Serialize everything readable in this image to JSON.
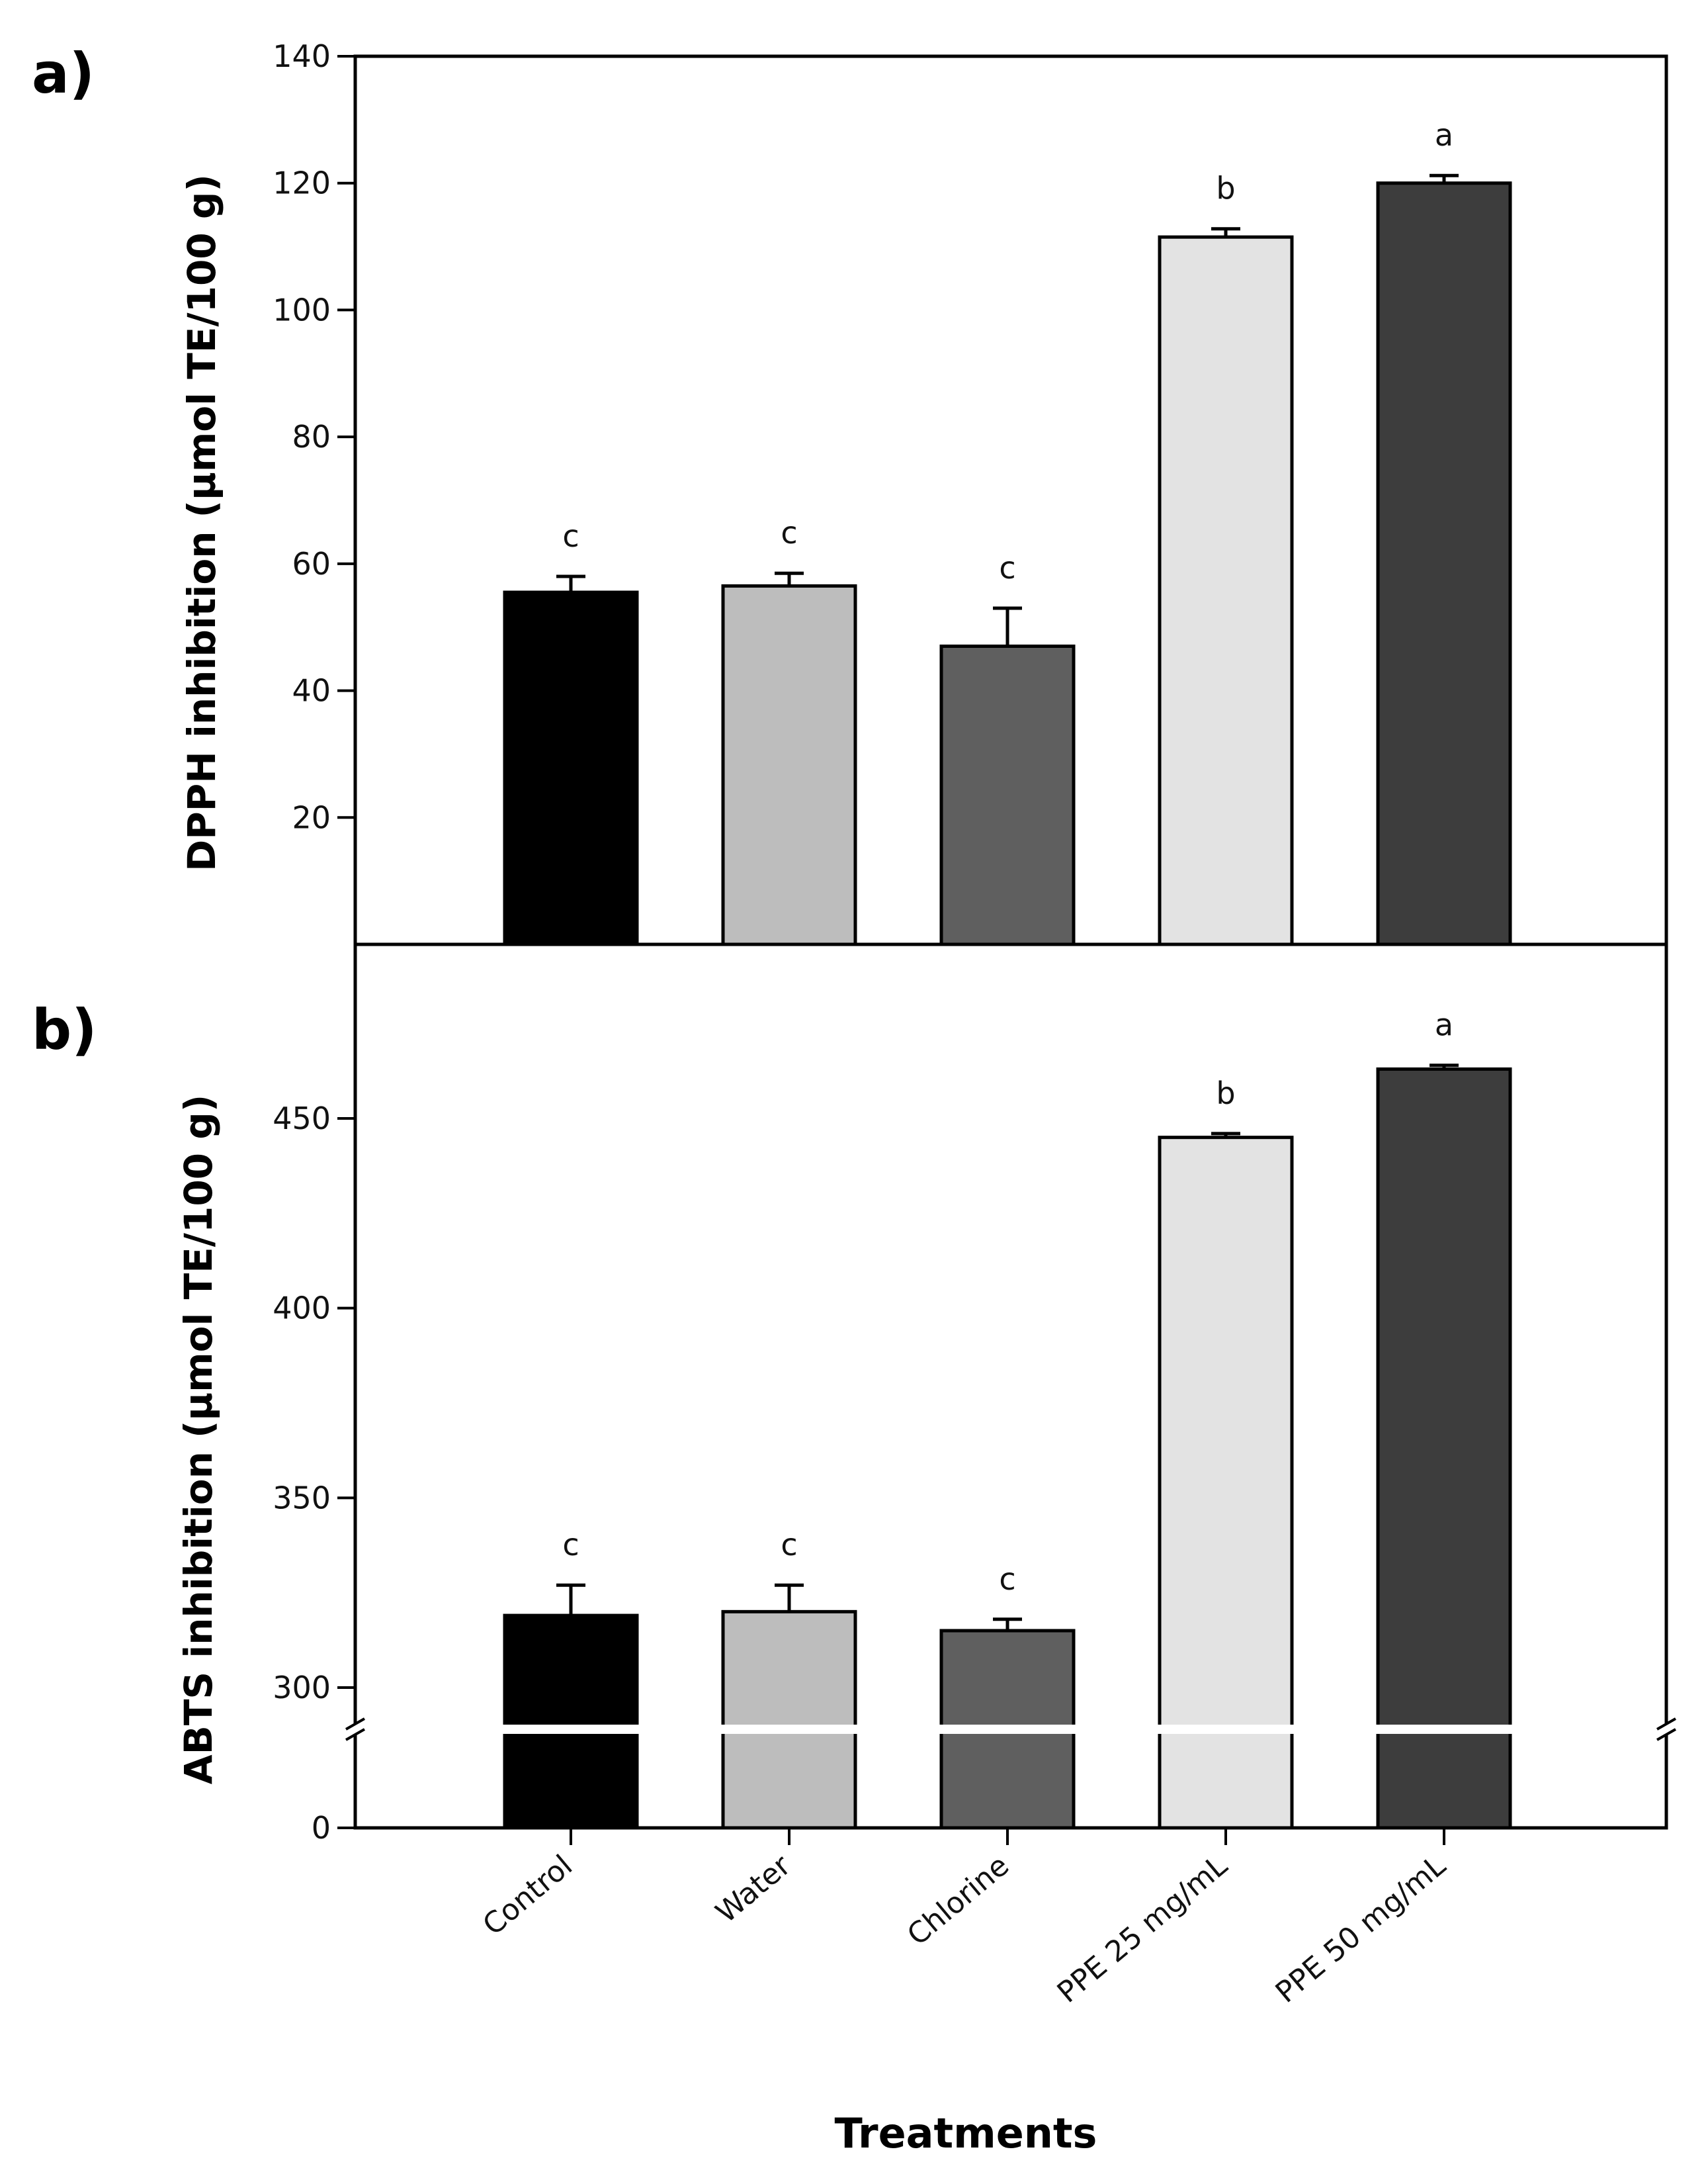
{
  "chart_data": [
    {
      "type": "bar",
      "panel_label": "a)",
      "categories": [
        "Control",
        "Water",
        "Chlorine",
        "PPE 25 mg/mL",
        "PPE 50 mg/mL"
      ],
      "values": [
        55.5,
        56.5,
        47,
        111.5,
        120
      ],
      "errors": [
        2.5,
        2.0,
        6.0,
        1.3,
        1.2
      ],
      "significance": [
        "c",
        "c",
        "c",
        "b",
        "a"
      ],
      "colors": [
        "#000000",
        "#bdbdbd",
        "#5f5f5f",
        "#e3e3e3",
        "#3d3d3d"
      ],
      "ylabel": "DPPH inhibition (µmol TE/100 g)",
      "ylim": [
        0,
        140
      ],
      "yticks": [
        20,
        40,
        60,
        80,
        100,
        120,
        140
      ]
    },
    {
      "type": "bar",
      "panel_label": "b)",
      "categories": [
        "Control",
        "Water",
        "Chlorine",
        "PPE 25 mg/mL",
        "PPE 50 mg/mL"
      ],
      "values": [
        319,
        320,
        315,
        445,
        463
      ],
      "errors": [
        8,
        7,
        3,
        1,
        1
      ],
      "significance": [
        "c",
        "c",
        "c",
        "b",
        "a"
      ],
      "colors": [
        "#000000",
        "#bdbdbd",
        "#5f5f5f",
        "#e3e3e3",
        "#3d3d3d"
      ],
      "ylabel": "ABTS inhibition (µmol TE/100 g)",
      "ylim": [
        0,
        490
      ],
      "axis_break": [
        0,
        290
      ],
      "yticks": [
        0,
        300,
        350,
        400,
        450
      ],
      "xlabel": "Treatments"
    }
  ]
}
